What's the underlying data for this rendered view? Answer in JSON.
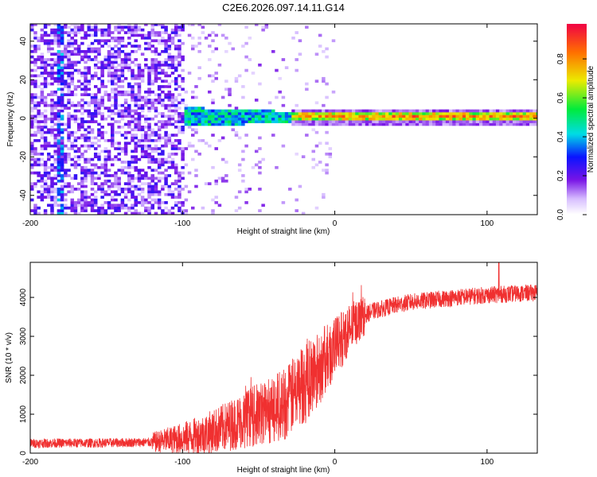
{
  "chart_data": [
    {
      "type": "heatmap",
      "name": "spectrogram",
      "title": "C2E6.2026.097.14.11.G14",
      "xlabel": "Height of straight line (km)",
      "ylabel": "Frequency (Hz)",
      "xlim": [
        -200,
        133
      ],
      "ylim": [
        -50,
        49
      ],
      "xticks": [
        -200,
        -100,
        0,
        100
      ],
      "yticks": [
        -40,
        -20,
        0,
        20,
        40
      ],
      "colorbar": {
        "label": "Normalized spectral amplitude",
        "range": [
          0.0,
          0.98
        ],
        "ticks": [
          0.0,
          0.2,
          0.4,
          0.6,
          0.8
        ],
        "tick_labels": [
          "0.0",
          "0.2",
          "0.4",
          "0.6",
          "0.8"
        ],
        "colormap": "rainbow (white -> violet -> blue -> cyan -> green -> yellow -> red)"
      },
      "features": [
        {
          "region_km": [
            -200,
            -100
          ],
          "description": "scattered noise across all frequencies",
          "amplitude": 0.15
        },
        {
          "region_km": [
            -100,
            -30
          ],
          "description": "tone near 0 Hz, spread +/-5 Hz",
          "amplitude": 0.35
        },
        {
          "region_km": [
            -30,
            133
          ],
          "description": "narrow tone at ~0 Hz",
          "amplitude": 0.85
        }
      ]
    },
    {
      "type": "line",
      "name": "snr",
      "xlabel": "Height of straight line (km)",
      "ylabel": "SNR (10 * v/v)",
      "xlim": [
        -200,
        133
      ],
      "ylim": [
        0,
        4900
      ],
      "xticks": [
        -200,
        -100,
        0,
        100
      ],
      "yticks": [
        0,
        1000,
        2000,
        3000,
        4000
      ],
      "color": "#f03030",
      "series": [
        {
          "name": "SNR",
          "x": [
            -200,
            -180,
            -160,
            -140,
            -120,
            -100,
            -90,
            -80,
            -70,
            -60,
            -50,
            -40,
            -30,
            -25,
            -20,
            -15,
            -10,
            -5,
            0,
            5,
            10,
            15,
            20,
            25,
            30,
            40,
            50,
            60,
            70,
            80,
            90,
            100,
            110,
            120,
            133
          ],
          "values": [
            250,
            260,
            260,
            270,
            280,
            380,
            450,
            550,
            700,
            850,
            1000,
            1150,
            1350,
            1600,
            1800,
            2000,
            2200,
            2450,
            2700,
            2950,
            3200,
            3400,
            3550,
            3650,
            3700,
            3800,
            3880,
            3920,
            3960,
            4000,
            4030,
            4060,
            4080,
            4100,
            4120
          ]
        }
      ]
    }
  ]
}
